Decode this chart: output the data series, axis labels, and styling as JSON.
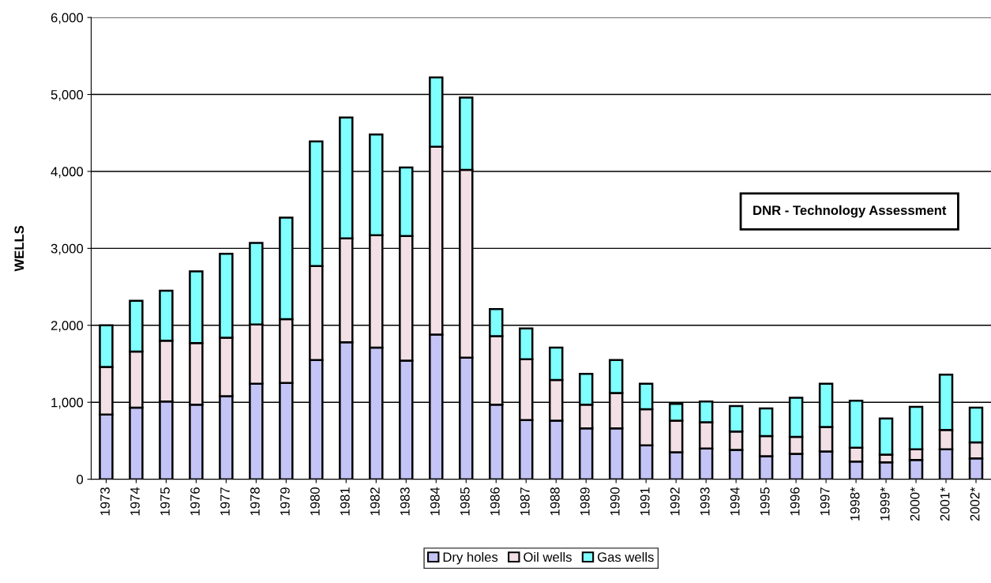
{
  "chart_data": {
    "type": "bar",
    "stacked": true,
    "ylabel": "WELLS",
    "categories": [
      "1973",
      "1974",
      "1975",
      "1976",
      "1977",
      "1978",
      "1979",
      "1980",
      "1981",
      "1982",
      "1983",
      "1984",
      "1985",
      "1986",
      "1987",
      "1988",
      "1989",
      "1990",
      "1991",
      "1992",
      "1993",
      "1994",
      "1995",
      "1996",
      "1997",
      "1998*",
      "1999*",
      "2000*",
      "2001*",
      "2002*"
    ],
    "series": [
      {
        "name": "Dry holes",
        "color": "#c4c4f6",
        "values": [
          840,
          930,
          1010,
          970,
          1080,
          1240,
          1250,
          1550,
          1780,
          1710,
          1540,
          1880,
          1580,
          970,
          770,
          760,
          660,
          660,
          440,
          350,
          400,
          380,
          300,
          330,
          360,
          230,
          220,
          250,
          390,
          270
        ]
      },
      {
        "name": "Oil wells",
        "color": "#f2e0e6",
        "values": [
          620,
          730,
          790,
          800,
          760,
          770,
          830,
          1220,
          1350,
          1460,
          1620,
          2440,
          2440,
          890,
          790,
          530,
          310,
          460,
          470,
          410,
          340,
          240,
          260,
          220,
          320,
          180,
          100,
          140,
          250,
          210
        ]
      },
      {
        "name": "Gas wells",
        "color": "#80ffff",
        "values": [
          540,
          660,
          650,
          930,
          1090,
          1060,
          1320,
          1620,
          1570,
          1310,
          890,
          900,
          940,
          350,
          400,
          420,
          400,
          430,
          330,
          220,
          270,
          330,
          360,
          510,
          560,
          610,
          470,
          550,
          720,
          450
        ]
      }
    ],
    "ylim": [
      0,
      6000
    ],
    "yticks": [
      0,
      {
        "value": 1000,
        "label": "1,000"
      },
      {
        "value": 2000,
        "label": "2,000"
      },
      {
        "value": 3000,
        "label": "3,000"
      },
      {
        "value": 4000,
        "label": "4,000"
      },
      {
        "value": 5000,
        "label": "5,000"
      },
      {
        "value": 6000,
        "label": "6,000"
      }
    ],
    "grid": "y",
    "legend": "bottom",
    "annotations": [
      "DNR - Technology Assessment"
    ]
  }
}
